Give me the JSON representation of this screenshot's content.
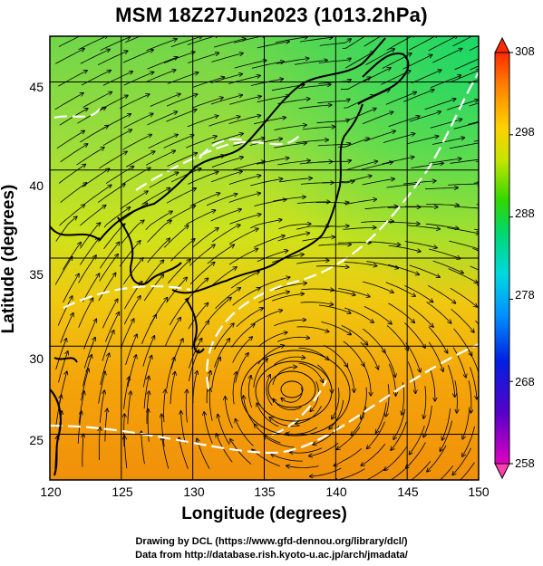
{
  "title": "MSM 18Z27Jun2023 (1013.2hPa)",
  "xlabel": "Longitude (degrees)",
  "ylabel": "Latitude  (degrees)",
  "x_ticks": [
    "120",
    "125",
    "130",
    "135",
    "140",
    "145",
    "150"
  ],
  "y_ticks": [
    "25",
    "30",
    "35",
    "40",
    "45"
  ],
  "colorbar": {
    "ticks": [
      "308",
      "298",
      "288",
      "278",
      "268",
      "258"
    ],
    "colors": [
      "#ff3fa0",
      "#d400c8",
      "#5a00c8",
      "#0000d8",
      "#0060ff",
      "#00aaff",
      "#00d8e8",
      "#00d890",
      "#10d800",
      "#80e000",
      "#d8e600",
      "#ffd000",
      "#ffa000",
      "#ff6a00",
      "#ff2000"
    ]
  },
  "credits": {
    "line1": "Drawing by DCL (https://www.gfd-dennou.org/library/dcl/)",
    "line2": "Data from http://database.rish.kyoto-u.ac.jp/arch/jmadata/"
  },
  "map": {
    "lon_range": [
      120,
      150
    ],
    "lat_range": [
      22.4,
      47.6
    ],
    "field": "temperature (K) with streamlines",
    "features": [
      "typhoon-like vortex near 137E 28N",
      "white contour lines"
    ]
  }
}
